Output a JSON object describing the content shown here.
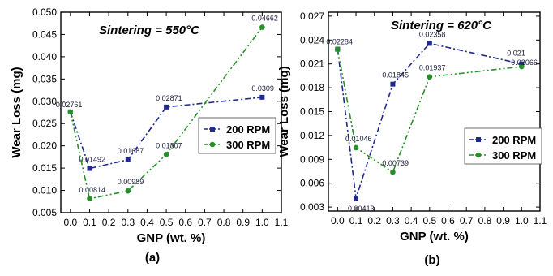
{
  "chart_data": [
    {
      "type": "line",
      "panel_label": "(a)",
      "annotation": "Sintering = 550°C",
      "xlabel": "GNP (wt. %)",
      "ylabel": "Wear Loss (mg)",
      "xlim": [
        -0.05,
        1.1
      ],
      "ylim": [
        0.005,
        0.05
      ],
      "xticks": [
        0.0,
        0.1,
        0.2,
        0.3,
        0.4,
        0.5,
        0.6,
        0.7,
        0.8,
        0.9,
        1.0,
        1.1
      ],
      "xtick_labels": [
        "0.0",
        "0.1",
        "0.2",
        "0.3",
        "0.4",
        "0.5",
        "0.6",
        "0.7",
        "0.8",
        "0.9",
        "1.0",
        "1.1"
      ],
      "yticks": [
        0.005,
        0.01,
        0.015,
        0.02,
        0.025,
        0.03,
        0.035,
        0.04,
        0.045,
        0.05
      ],
      "ytick_labels": [
        "0.005",
        "0.010",
        "0.015",
        "0.020",
        "0.025",
        "0.030",
        "0.035",
        "0.040",
        "0.045",
        "0.050"
      ],
      "legend_position": "center-right",
      "series": [
        {
          "name": "200 RPM",
          "color": "#1f2a8c",
          "marker": "square",
          "x": [
            0.0,
            0.1,
            0.3,
            0.5,
            1.0
          ],
          "y": [
            0.02761,
            0.01492,
            0.01687,
            0.02871,
            0.0309
          ],
          "labels": [
            "0.02761",
            "0.01492",
            "0.01687",
            "0.02871",
            "0.0309"
          ],
          "label_show": [
            true,
            true,
            true,
            true,
            true
          ]
        },
        {
          "name": "300 RPM",
          "color": "#2a8f2a",
          "marker": "circle",
          "x": [
            0.0,
            0.1,
            0.3,
            0.5,
            1.0
          ],
          "y": [
            0.02761,
            0.00814,
            0.00989,
            0.01807,
            0.04662
          ],
          "labels": [
            "0.02761",
            "0.00814",
            "0.00989",
            "0.01807",
            "0.04662"
          ],
          "label_show": [
            false,
            true,
            true,
            true,
            true
          ]
        }
      ]
    },
    {
      "type": "line",
      "panel_label": "(b)",
      "annotation": "Sintering = 620°C",
      "xlabel": "GNP (wt. %)",
      "ylabel": "Wear Loss (mg)",
      "xlim": [
        -0.05,
        1.1
      ],
      "ylim": [
        0.0025,
        0.0275
      ],
      "xticks": [
        0.0,
        0.1,
        0.2,
        0.3,
        0.4,
        0.5,
        0.6,
        0.7,
        0.8,
        0.9,
        1.0,
        1.1
      ],
      "xtick_labels": [
        "0.0",
        "0.1",
        "0.2",
        "0.3",
        "0.4",
        "0.5",
        "0.6",
        "0.7",
        "0.8",
        "0.9",
        "1.0",
        "1.1"
      ],
      "yticks": [
        0.003,
        0.006,
        0.009,
        0.012,
        0.015,
        0.018,
        0.021,
        0.024,
        0.027
      ],
      "ytick_labels": [
        "0.003",
        "0.006",
        "0.009",
        "0.012",
        "0.015",
        "0.018",
        "0.021",
        "0.024",
        "0.027"
      ],
      "legend_position": "center-right",
      "series": [
        {
          "name": "200 RPM",
          "color": "#1f2a8c",
          "marker": "square",
          "x": [
            0.0,
            0.1,
            0.3,
            0.5,
            1.0
          ],
          "y": [
            0.02284,
            0.00413,
            0.01845,
            0.02358,
            0.021
          ],
          "labels": [
            "0.02284",
            "0.00413",
            "0.01845",
            "0.02358",
            "0.021"
          ],
          "label_show": [
            true,
            true,
            true,
            true,
            true
          ]
        },
        {
          "name": "300 RPM",
          "color": "#2a8f2a",
          "marker": "circle",
          "x": [
            0.0,
            0.1,
            0.3,
            0.5,
            1.0
          ],
          "y": [
            0.02284,
            0.01046,
            0.00739,
            0.01937,
            0.02066
          ],
          "labels": [
            "0.02284",
            "0.01046",
            "0.00739",
            "0.01937",
            "0.02066"
          ],
          "label_show": [
            false,
            true,
            true,
            true,
            true
          ]
        }
      ]
    }
  ]
}
